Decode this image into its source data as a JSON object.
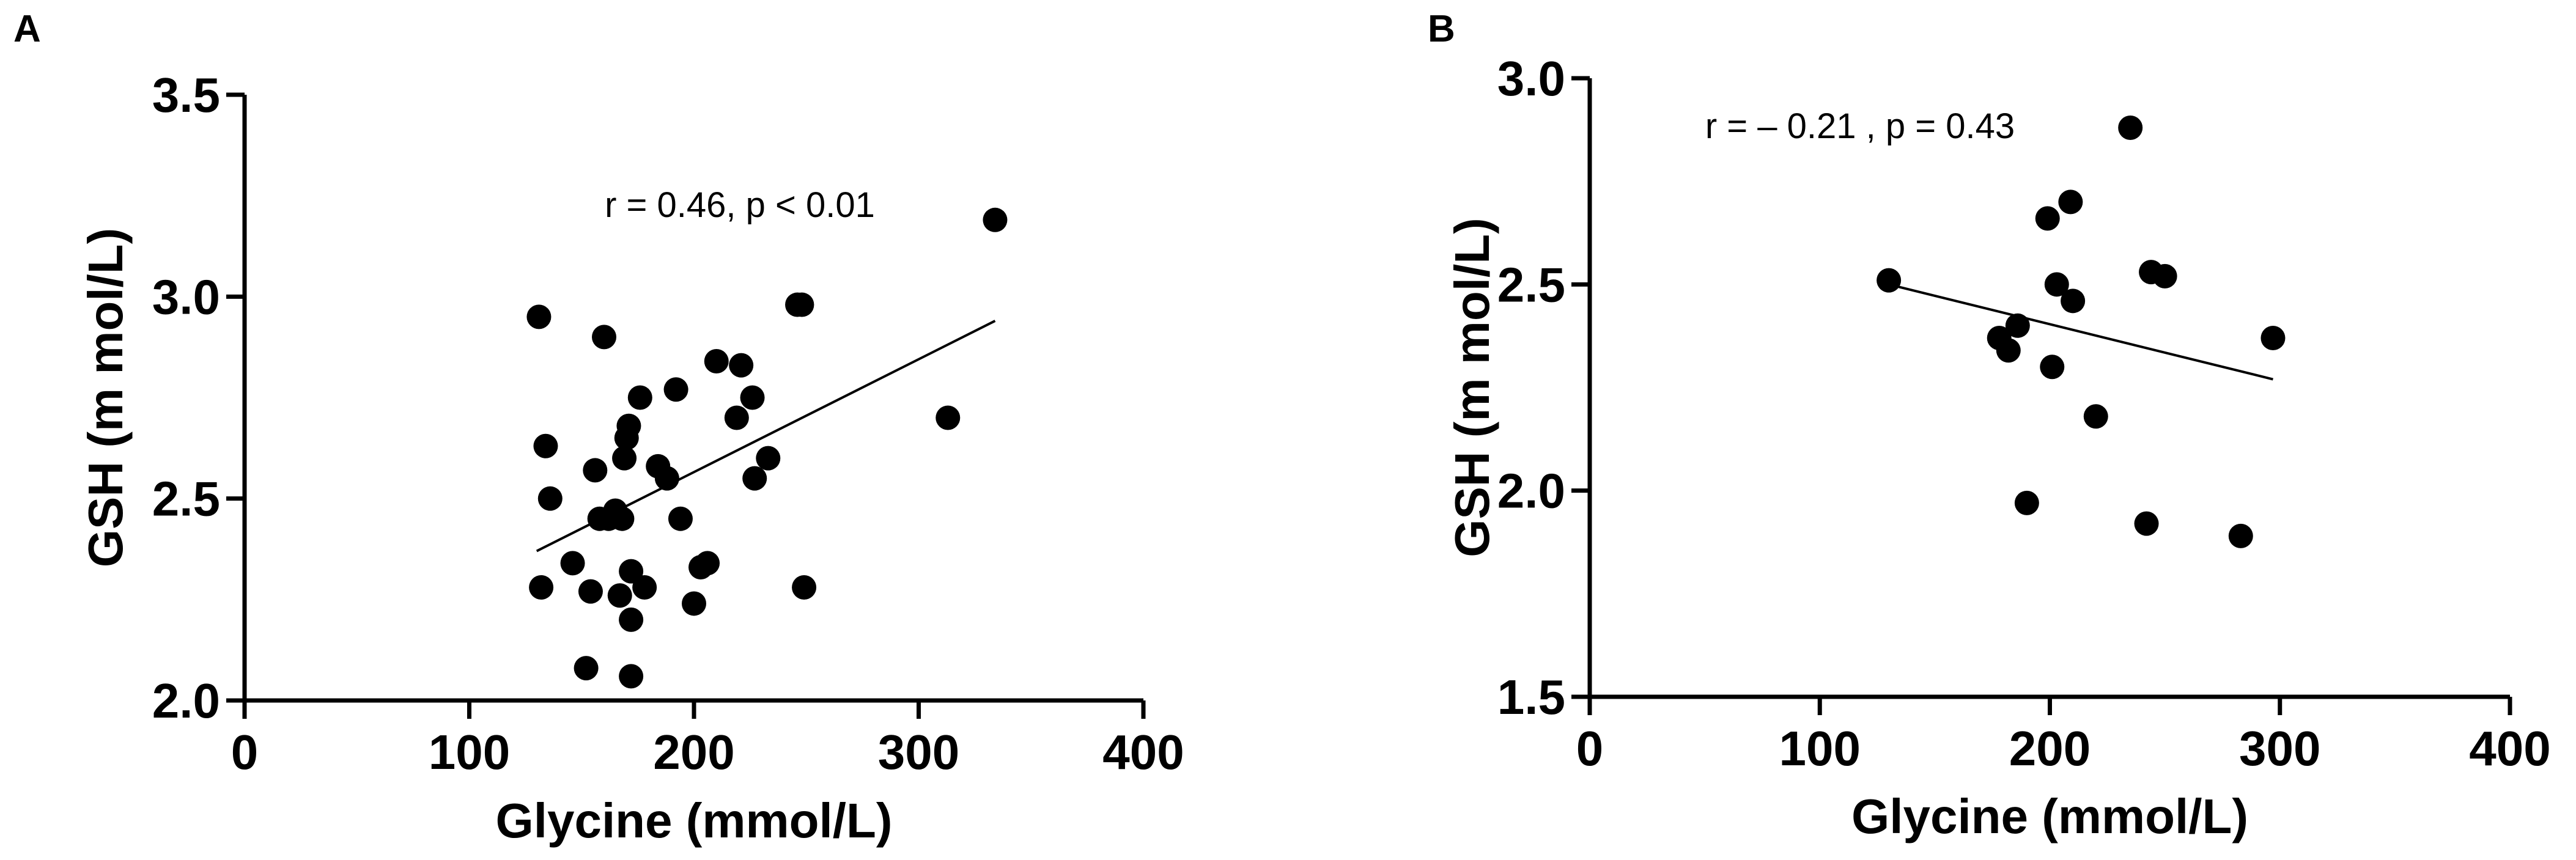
{
  "chart_data": [
    {
      "type": "scatter",
      "panel_label": "A",
      "xlabel": "Glycine (mmol/L)",
      "ylabel": "GSH (m mol/L)",
      "xlim": [
        0,
        400
      ],
      "ylim": [
        2.0,
        3.5
      ],
      "x_ticks": [
        "0",
        "100",
        "200",
        "300",
        "400"
      ],
      "y_ticks": [
        "2.0",
        "2.5",
        "3.0",
        "3.5"
      ],
      "annotation": "r = 0.46, p < 0.01",
      "grid": false,
      "points": [
        {
          "x": 131,
          "y": 2.95
        },
        {
          "x": 160,
          "y": 2.9
        },
        {
          "x": 134,
          "y": 2.63
        },
        {
          "x": 136,
          "y": 2.5
        },
        {
          "x": 132,
          "y": 2.28
        },
        {
          "x": 146,
          "y": 2.34
        },
        {
          "x": 152,
          "y": 2.08
        },
        {
          "x": 154,
          "y": 2.27
        },
        {
          "x": 156,
          "y": 2.57
        },
        {
          "x": 158,
          "y": 2.45
        },
        {
          "x": 162,
          "y": 2.45
        },
        {
          "x": 165,
          "y": 2.47
        },
        {
          "x": 167,
          "y": 2.26
        },
        {
          "x": 168,
          "y": 2.45
        },
        {
          "x": 169,
          "y": 2.6
        },
        {
          "x": 170,
          "y": 2.65
        },
        {
          "x": 171,
          "y": 2.68
        },
        {
          "x": 172,
          "y": 2.32
        },
        {
          "x": 172,
          "y": 2.2
        },
        {
          "x": 172,
          "y": 2.06
        },
        {
          "x": 176,
          "y": 2.75
        },
        {
          "x": 178,
          "y": 2.28
        },
        {
          "x": 184,
          "y": 2.58
        },
        {
          "x": 188,
          "y": 2.55
        },
        {
          "x": 192,
          "y": 2.77
        },
        {
          "x": 194,
          "y": 2.45
        },
        {
          "x": 200,
          "y": 2.24
        },
        {
          "x": 203,
          "y": 2.33
        },
        {
          "x": 206,
          "y": 2.34
        },
        {
          "x": 210,
          "y": 2.84
        },
        {
          "x": 219,
          "y": 2.7
        },
        {
          "x": 221,
          "y": 2.83
        },
        {
          "x": 226,
          "y": 2.75
        },
        {
          "x": 227,
          "y": 2.55
        },
        {
          "x": 233,
          "y": 2.6
        },
        {
          "x": 246,
          "y": 2.98
        },
        {
          "x": 248,
          "y": 2.98
        },
        {
          "x": 249,
          "y": 2.28
        },
        {
          "x": 313,
          "y": 2.7
        },
        {
          "x": 334,
          "y": 3.19
        }
      ],
      "regression_line": {
        "x": [
          130,
          334
        ],
        "y": [
          2.37,
          2.94
        ]
      }
    },
    {
      "type": "scatter",
      "panel_label": "B",
      "xlabel": "Glycine (mmol/L)",
      "ylabel": "GSH (m mol/L)",
      "xlim": [
        0,
        400
      ],
      "ylim": [
        1.5,
        3.0
      ],
      "x_ticks": [
        "0",
        "100",
        "200",
        "300",
        "400"
      ],
      "y_ticks": [
        "1.5",
        "2.0",
        "2.5",
        "3.0"
      ],
      "annotation": "r = – 0.21 , p = 0.43",
      "grid": false,
      "points": [
        {
          "x": 130,
          "y": 2.51
        },
        {
          "x": 178,
          "y": 2.37
        },
        {
          "x": 182,
          "y": 2.34
        },
        {
          "x": 186,
          "y": 2.4
        },
        {
          "x": 190,
          "y": 1.97
        },
        {
          "x": 199,
          "y": 2.66
        },
        {
          "x": 201,
          "y": 2.3
        },
        {
          "x": 203,
          "y": 2.5
        },
        {
          "x": 209,
          "y": 2.7
        },
        {
          "x": 210,
          "y": 2.46
        },
        {
          "x": 220,
          "y": 2.18
        },
        {
          "x": 235,
          "y": 2.88
        },
        {
          "x": 242,
          "y": 1.92
        },
        {
          "x": 244,
          "y": 2.53
        },
        {
          "x": 250,
          "y": 2.52
        },
        {
          "x": 283,
          "y": 1.89
        },
        {
          "x": 297,
          "y": 2.37
        }
      ],
      "regression_line": {
        "x": [
          130,
          297
        ],
        "y": [
          2.5,
          2.27
        ]
      }
    }
  ]
}
